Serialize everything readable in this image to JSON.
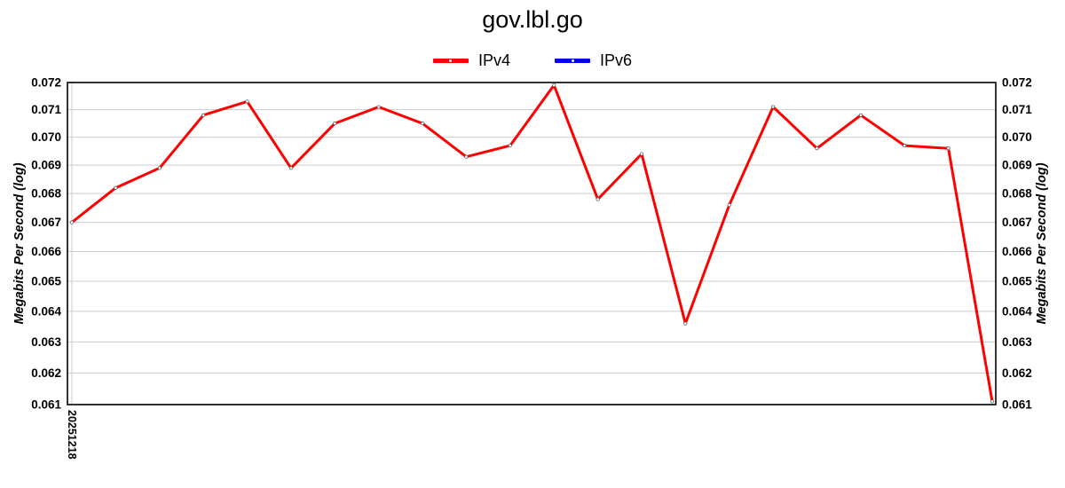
{
  "title": "gov.lbl.go",
  "y_axis_label": "Megabits Per Second (log)",
  "colors": {
    "ipv4": "#ff0000",
    "ipv6": "#0000ee",
    "grid": "#cccccc",
    "axis": "#000000",
    "marker_fill": "#ffffff",
    "background": "#ffffff"
  },
  "chart_data": {
    "type": "line",
    "title": "gov.lbl.go",
    "xlabel": "",
    "ylabel": "Megabits Per Second (log)",
    "ylabel_right": "Megabits Per Second (log)",
    "yscale": "log",
    "ylim": [
      0.061,
      0.072
    ],
    "y_ticks": [
      "0.072",
      "0.071",
      "0.070",
      "0.069",
      "0.068",
      "0.067",
      "0.066",
      "0.065",
      "0.064",
      "0.063",
      "0.062",
      "0.061"
    ],
    "x_ticks": [
      {
        "index": 0,
        "label": "20251218"
      }
    ],
    "grid": true,
    "legend_position": "top",
    "series": [
      {
        "name": "IPv4",
        "color": "#ff0000",
        "values": [
          0.067,
          0.0682,
          0.0689,
          0.0708,
          0.0713,
          0.0689,
          0.0705,
          0.0711,
          0.0705,
          0.0693,
          0.0697,
          0.0719,
          0.0678,
          0.0694,
          0.0636,
          0.0676,
          0.0711,
          0.0696,
          0.0708,
          0.0697,
          0.0696,
          0.0611
        ]
      },
      {
        "name": "IPv6",
        "color": "#0000ee",
        "values": []
      }
    ]
  }
}
